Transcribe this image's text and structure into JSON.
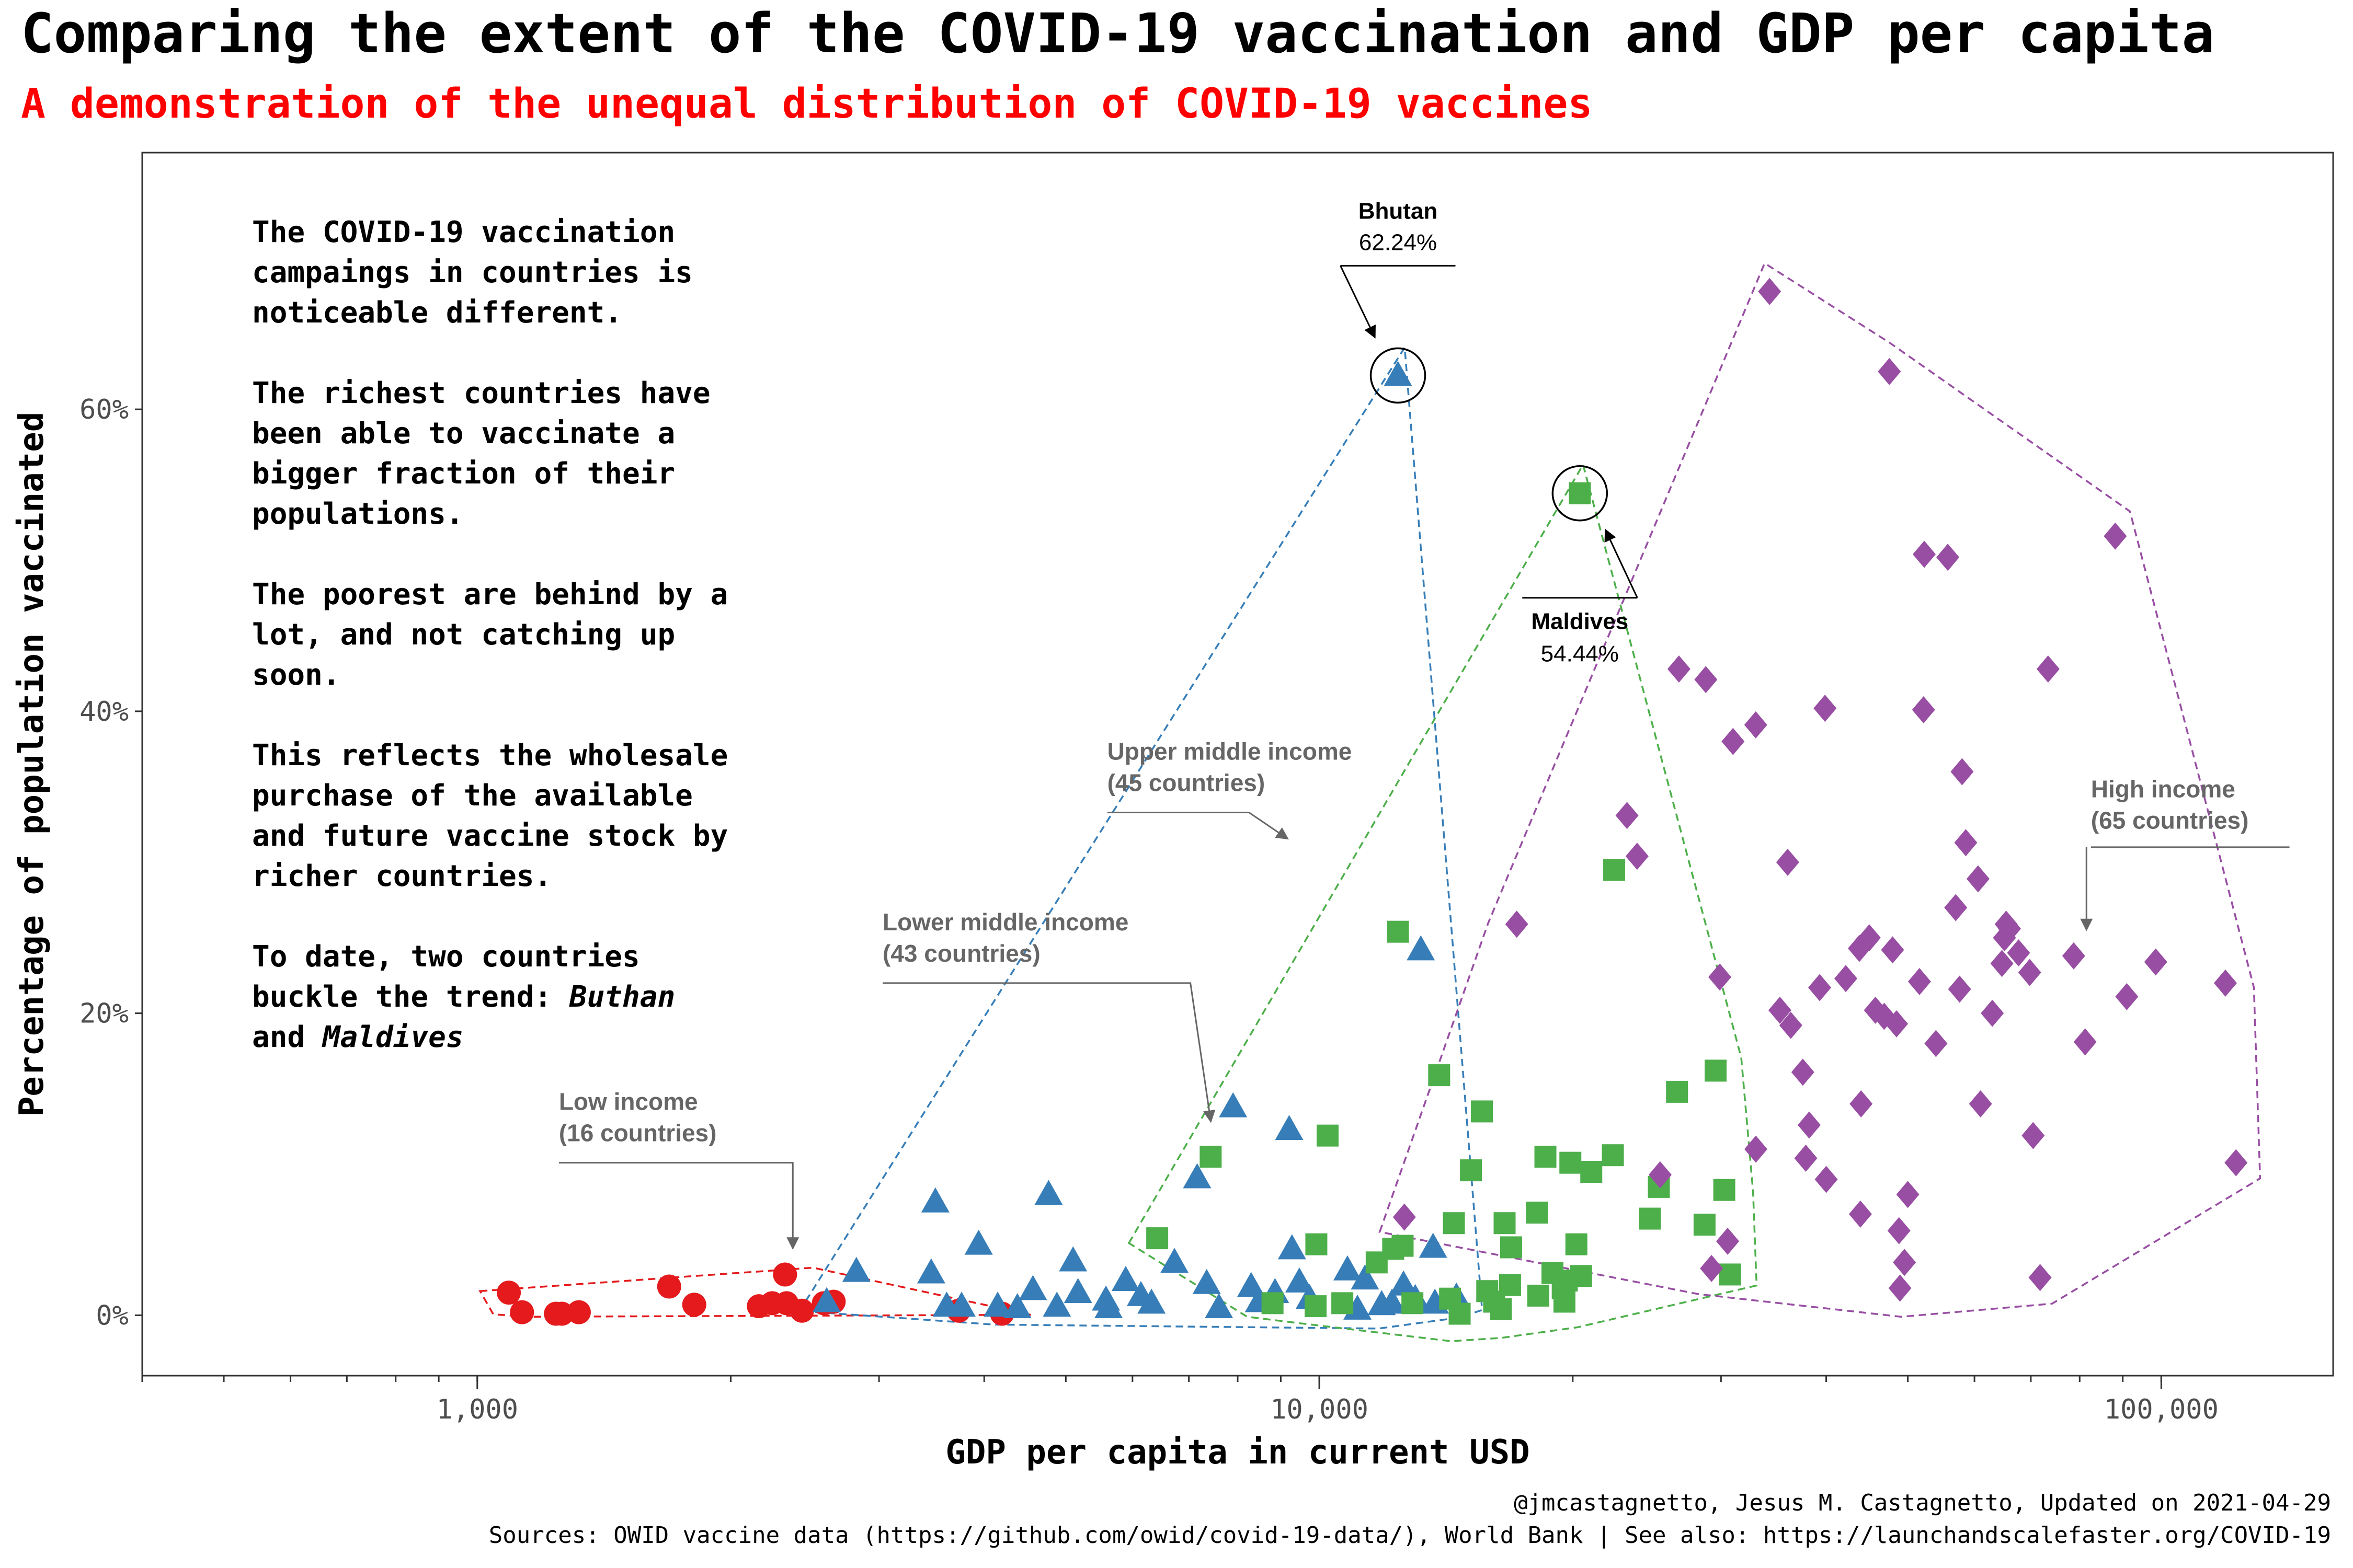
{
  "title": "Comparing the extent of the COVID-19 vaccination and GDP per capita",
  "subtitle": "A demonstration of the unequal distribution of COVID-19 vaccines",
  "narrative": [
    [
      {
        "t": "The "
      },
      {
        "t": "COVID-19",
        "b": true
      },
      {
        "t": " vaccination"
      }
    ],
    [
      {
        "t": "campaings in countries is"
      }
    ],
    [
      {
        "t": "noticeable different."
      }
    ],
    [],
    [
      {
        "t": "The richest countries have"
      }
    ],
    [
      {
        "t": "been able to vaccinate a"
      }
    ],
    [
      {
        "t": "bigger fraction of their"
      }
    ],
    [
      {
        "t": "populations."
      }
    ],
    [],
    [
      {
        "t": "The poorest are behind by a"
      }
    ],
    [
      {
        "t": "lot, and not catching up"
      }
    ],
    [
      {
        "t": "soon."
      }
    ],
    [],
    [
      {
        "t": "This reflects the wholesale"
      }
    ],
    [
      {
        "t": "purchase of the available"
      }
    ],
    [
      {
        "t": "and future vaccine stock by"
      }
    ],
    [
      {
        "t": "richer countries."
      }
    ],
    [],
    [
      {
        "t": "To date, two countries"
      }
    ],
    [
      {
        "t": "buckle the trend: "
      },
      {
        "t": "Buthan",
        "i": true
      }
    ],
    [
      {
        "t": "and "
      },
      {
        "t": "Maldives",
        "i": true
      }
    ]
  ],
  "caption": {
    "line1": "@jmcastagnetto, Jesus M. Castagnetto, Updated on 2021-04-29",
    "line2": "Sources: OWID vaccine data (https://github.com/owid/covid-19-data/), World Bank | See also: https://launchandscalefaster.org/COVID-19"
  },
  "chart_data": {
    "type": "scatter",
    "xlabel": "GDP per capita in current USD",
    "ylabel": "Percentage of population vaccinated",
    "x_scale": "log",
    "xlim": [
      400,
      160000
    ],
    "ylim": [
      -4,
      77
    ],
    "x_ticks": [
      {
        "v": 1000,
        "label": "1,000"
      },
      {
        "v": 10000,
        "label": "10,000"
      },
      {
        "v": 100000,
        "label": "100,000"
      }
    ],
    "y_ticks": [
      {
        "v": 0,
        "label": "0%"
      },
      {
        "v": 20,
        "label": "20%"
      },
      {
        "v": 40,
        "label": "40%"
      },
      {
        "v": 60,
        "label": "60%"
      }
    ],
    "grid": false,
    "legend": "none",
    "series": [
      {
        "name": "Low income",
        "label_lines": [
          "Low income",
          "(16 countries)"
        ],
        "color": "#e41a1c",
        "shape": "circle",
        "points": [
          [
            1090,
            1.5
          ],
          [
            1130,
            0.2
          ],
          [
            1260,
            0.1
          ],
          [
            1320,
            0.2
          ],
          [
            1690,
            1.9
          ],
          [
            1810,
            0.7
          ],
          [
            2160,
            0.6
          ],
          [
            2240,
            0.8
          ],
          [
            2320,
            2.7
          ],
          [
            2330,
            0.8
          ],
          [
            2430,
            0.3
          ],
          [
            2580,
            0.8
          ],
          [
            2650,
            0.9
          ],
          [
            3730,
            0.3
          ],
          [
            4200,
            0.1
          ],
          [
            1240,
            0.1
          ]
        ]
      },
      {
        "name": "Lower middle income",
        "label_lines": [
          "Lower middle income",
          "(43 countries)"
        ],
        "color": "#377eb8",
        "shape": "triangle",
        "points": [
          [
            2600,
            0.9
          ],
          [
            2820,
            2.9
          ],
          [
            3500,
            7.5
          ],
          [
            3460,
            2.8
          ],
          [
            3610,
            0.6
          ],
          [
            3760,
            0.6
          ],
          [
            3940,
            4.7
          ],
          [
            4150,
            0.6
          ],
          [
            4380,
            0.5
          ],
          [
            4570,
            1.7
          ],
          [
            4770,
            8.0
          ],
          [
            4880,
            0.6
          ],
          [
            5100,
            3.6
          ],
          [
            5170,
            1.5
          ],
          [
            5580,
            1.0
          ],
          [
            5620,
            0.5
          ],
          [
            5890,
            2.3
          ],
          [
            6140,
            1.3
          ],
          [
            6320,
            0.8
          ],
          [
            6730,
            3.5
          ],
          [
            7160,
            9.1
          ],
          [
            7350,
            2.1
          ],
          [
            7600,
            0.5
          ],
          [
            7900,
            13.8
          ],
          [
            8300,
            1.9
          ],
          [
            8480,
            0.9
          ],
          [
            8860,
            1.5
          ],
          [
            9210,
            12.3
          ],
          [
            9280,
            4.4
          ],
          [
            9470,
            2.2
          ],
          [
            9740,
            1.1
          ],
          [
            10800,
            3.0
          ],
          [
            11330,
            2.4
          ],
          [
            11860,
            0.7
          ],
          [
            12200,
            0.8
          ],
          [
            12590,
            2.0
          ],
          [
            12400,
            62.24
          ],
          [
            13200,
            24.2
          ],
          [
            13000,
            1.1
          ],
          [
            13720,
            0.8
          ],
          [
            13650,
            4.5
          ],
          [
            14550,
            1.2
          ],
          [
            11100,
            0.4
          ]
        ]
      },
      {
        "name": "Upper middle income",
        "label_lines": [
          "Upper middle income",
          "(45 countries)"
        ],
        "color": "#4daf4a",
        "shape": "square",
        "points": [
          [
            6420,
            5.1
          ],
          [
            7430,
            10.5
          ],
          [
            8800,
            0.8
          ],
          [
            9920,
            4.7
          ],
          [
            10230,
            11.9
          ],
          [
            10650,
            0.8
          ],
          [
            11700,
            3.5
          ],
          [
            12400,
            25.4
          ],
          [
            12560,
            4.6
          ],
          [
            12240,
            4.4
          ],
          [
            12900,
            0.8
          ],
          [
            13880,
            15.9
          ],
          [
            14450,
            6.1
          ],
          [
            14680,
            0.1
          ],
          [
            15140,
            9.6
          ],
          [
            15600,
            13.5
          ],
          [
            15830,
            1.6
          ],
          [
            16430,
            0.4
          ],
          [
            16600,
            6.1
          ],
          [
            16850,
            2.0
          ],
          [
            18130,
            6.8
          ],
          [
            18560,
            10.5
          ],
          [
            18920,
            2.8
          ],
          [
            19460,
            1.8
          ],
          [
            19680,
            2.3
          ],
          [
            19870,
            10.1
          ],
          [
            20200,
            4.7
          ],
          [
            20460,
            2.6
          ],
          [
            21040,
            9.5
          ],
          [
            22320,
            10.6
          ],
          [
            22400,
            29.5
          ],
          [
            24690,
            6.4
          ],
          [
            25310,
            8.5
          ],
          [
            26600,
            14.8
          ],
          [
            28680,
            6.0
          ],
          [
            29560,
            16.2
          ],
          [
            30270,
            8.3
          ],
          [
            30750,
            2.7
          ],
          [
            19550,
            0.9
          ],
          [
            16130,
            0.9
          ],
          [
            16900,
            4.5
          ],
          [
            20390,
            54.44
          ],
          [
            9900,
            0.6
          ],
          [
            14300,
            1.1
          ],
          [
            18200,
            1.3
          ]
        ]
      },
      {
        "name": "High income",
        "label_lines": [
          "High income",
          "(65 countries)"
        ],
        "color": "#984ea3",
        "shape": "diamond",
        "points": [
          [
            12620,
            6.5
          ],
          [
            17160,
            25.9
          ],
          [
            23200,
            33.1
          ],
          [
            23850,
            30.4
          ],
          [
            25400,
            9.3
          ],
          [
            26740,
            42.8
          ],
          [
            28780,
            42.1
          ],
          [
            29230,
            3.1
          ],
          [
            29900,
            22.4
          ],
          [
            30550,
            4.9
          ],
          [
            32990,
            39.1
          ],
          [
            34260,
            67.8
          ],
          [
            35240,
            20.2
          ],
          [
            36310,
            19.2
          ],
          [
            37520,
            16.1
          ],
          [
            37830,
            10.4
          ],
          [
            38180,
            12.6
          ],
          [
            39290,
            21.7
          ],
          [
            39870,
            40.2
          ],
          [
            42200,
            22.3
          ],
          [
            43800,
            24.3
          ],
          [
            43920,
            6.7
          ],
          [
            45760,
            20.2
          ],
          [
            46870,
            19.8
          ],
          [
            47540,
            62.5
          ],
          [
            47960,
            24.2
          ],
          [
            48480,
            19.3
          ],
          [
            48810,
            5.6
          ],
          [
            48940,
            1.8
          ],
          [
            49540,
            3.5
          ],
          [
            51620,
            22.1
          ],
          [
            52200,
            40.1
          ],
          [
            52300,
            50.4
          ],
          [
            55780,
            50.2
          ],
          [
            57610,
            21.6
          ],
          [
            58590,
            31.3
          ],
          [
            60590,
            28.9
          ],
          [
            65430,
            25.9
          ],
          [
            64680,
            23.3
          ],
          [
            65130,
            25.0
          ],
          [
            66030,
            25.6
          ],
          [
            67690,
            24.0
          ],
          [
            69780,
            22.7
          ],
          [
            70440,
            11.9
          ],
          [
            71790,
            2.5
          ],
          [
            73380,
            42.8
          ],
          [
            78700,
            23.8
          ],
          [
            81200,
            18.1
          ],
          [
            88180,
            51.6
          ],
          [
            91000,
            21.1
          ],
          [
            98500,
            23.4
          ],
          [
            119170,
            22.0
          ],
          [
            122670,
            10.1
          ],
          [
            58000,
            36.0
          ],
          [
            61000,
            14.0
          ],
          [
            54000,
            18.0
          ],
          [
            45000,
            25.0
          ],
          [
            40000,
            9.0
          ],
          [
            36000,
            30.0
          ],
          [
            33000,
            11.0
          ],
          [
            31000,
            38.0
          ],
          [
            44000,
            14.0
          ],
          [
            50000,
            8.0
          ],
          [
            63000,
            20.0
          ],
          [
            57000,
            27.0
          ]
        ]
      }
    ],
    "annotations": [
      {
        "name": "Bhutan",
        "value": "62.24%",
        "x": 12400,
        "y": 62.24
      },
      {
        "name": "Maldives",
        "value": "54.44%",
        "x": 20390,
        "y": 54.44
      }
    ]
  }
}
